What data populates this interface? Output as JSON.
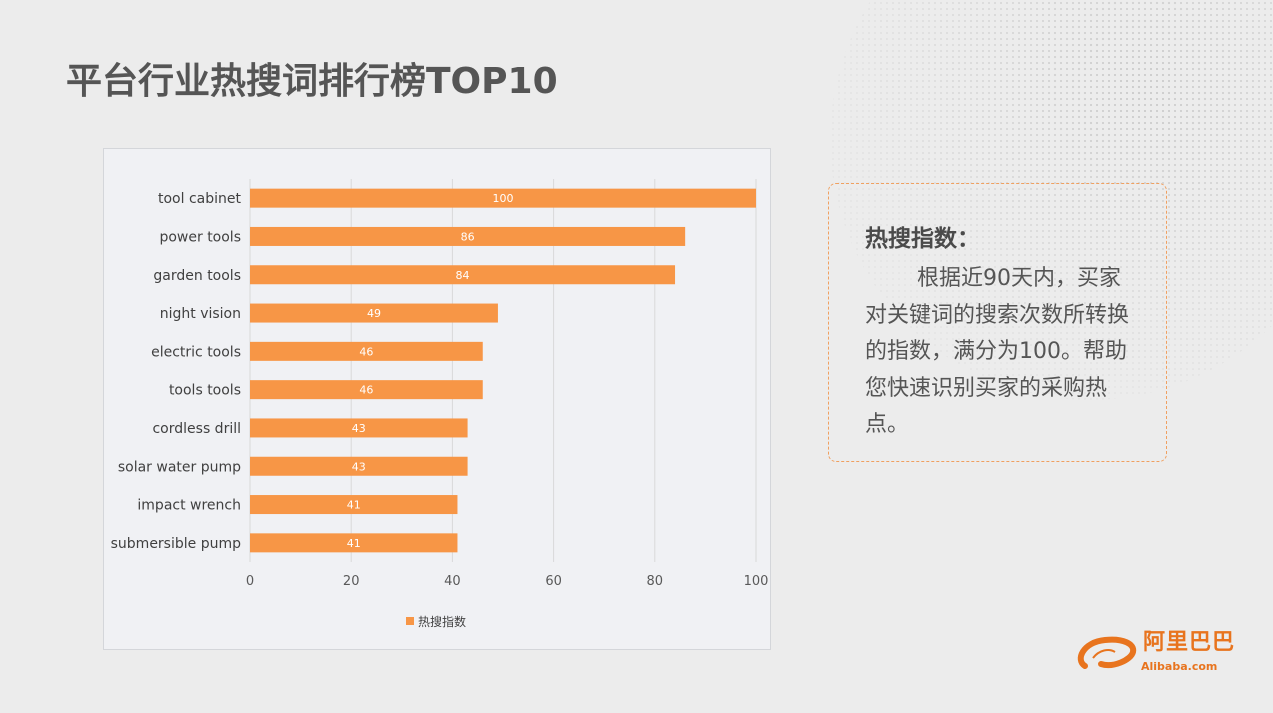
{
  "title": "平台行业热搜词排行榜TOP10",
  "note": {
    "title": "热搜指数：",
    "body": "根据近90天内，买家对关键词的搜索次数所转换的指数，满分为100。帮助您快速识别买家的采购热点。"
  },
  "logo": {
    "cn": "阿里巴巴",
    "en": "Alibaba.com"
  },
  "chart_data": {
    "type": "bar",
    "orientation": "horizontal",
    "categories": [
      "tool cabinet",
      "power tools",
      "garden tools",
      "night vision",
      "electric tools",
      "tools tools",
      "cordless drill",
      "solar water pump",
      "impact wrench",
      "submersible pump"
    ],
    "series": [
      {
        "name": "热搜指数",
        "values": [
          100,
          86,
          84,
          49,
          46,
          46,
          43,
          43,
          41,
          41
        ],
        "color": "#f79646"
      }
    ],
    "xlim": [
      0,
      100
    ],
    "xticks": [
      0,
      20,
      40,
      60,
      80,
      100
    ],
    "grid": true,
    "legend": "bottom",
    "data_labels": true
  }
}
